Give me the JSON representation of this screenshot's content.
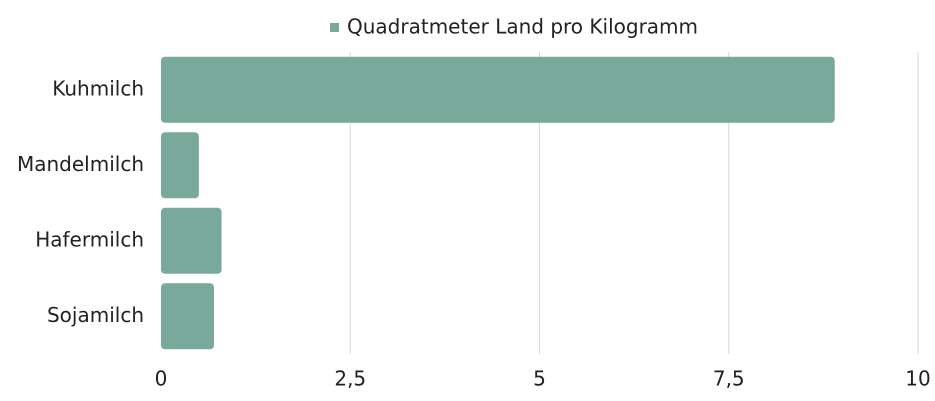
{
  "chart_data": {
    "type": "bar",
    "orientation": "horizontal",
    "categories": [
      "Kuhmilch",
      "Mandelmilch",
      "Hafermilch",
      "Sojamilch"
    ],
    "series": [
      {
        "name": "Quadratmeter Land pro Kilogramm",
        "color": "#78a99b",
        "values": [
          8.9,
          0.5,
          0.8,
          0.7
        ]
      }
    ],
    "xlim": [
      0,
      10
    ],
    "xticks": [
      0,
      {
        "value": 2.5,
        "label": "2,5"
      },
      5,
      {
        "value": 7.5,
        "label": "7,5"
      },
      10
    ],
    "grid": true,
    "legend": "top"
  }
}
